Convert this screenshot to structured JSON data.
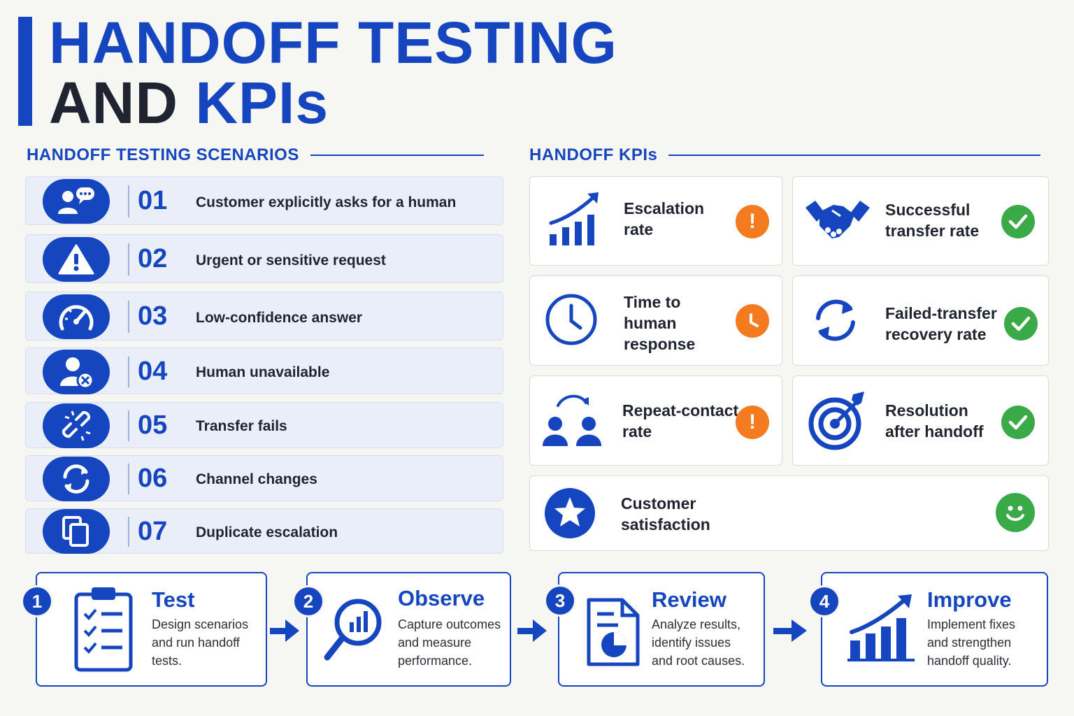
{
  "title": {
    "line1": "HANDOFF TESTING",
    "line2a": "AND ",
    "line2b": "KPIs"
  },
  "colors": {
    "accent": "#1546c0",
    "warning": "#f47b20",
    "success": "#3aaa48"
  },
  "scenarios": {
    "heading": "HANDOFF TESTING SCENARIOS",
    "items": [
      {
        "num": "01",
        "text": "Customer explicitly asks for a human",
        "icon": "chat-person-icon"
      },
      {
        "num": "02",
        "text": "Urgent or sensitive request",
        "icon": "warning-icon"
      },
      {
        "num": "03",
        "text": "Low-confidence answer",
        "icon": "gauge-icon"
      },
      {
        "num": "04",
        "text": "Human unavailable",
        "icon": "person-unavailable-icon"
      },
      {
        "num": "05",
        "text": "Transfer fails",
        "icon": "broken-link-icon"
      },
      {
        "num": "06",
        "text": "Channel changes",
        "icon": "refresh-icon"
      },
      {
        "num": "07",
        "text": "Duplicate escalation",
        "icon": "duplicate-icon"
      }
    ]
  },
  "kpis": {
    "heading": "HANDOFF KPIs",
    "items": [
      {
        "lines": [
          "Escalation",
          "rate"
        ],
        "icon": "growth-chart-icon",
        "status": "alert"
      },
      {
        "lines": [
          "Successful",
          "transfer rate"
        ],
        "icon": "handshake-icon",
        "status": "check"
      },
      {
        "lines": [
          "Time to",
          "human",
          "response"
        ],
        "icon": "clock-icon",
        "status": "clock"
      },
      {
        "lines": [
          "Failed-transfer",
          "recovery rate"
        ],
        "icon": "refresh-icon",
        "status": "check"
      },
      {
        "lines": [
          "Repeat-contact",
          "rate"
        ],
        "icon": "repeat-people-icon",
        "status": "alert"
      },
      {
        "lines": [
          "Resolution",
          "after handoff"
        ],
        "icon": "target-icon",
        "status": "check"
      },
      {
        "lines": [
          "Customer",
          "satisfaction"
        ],
        "icon": "star-icon",
        "status": "smile"
      }
    ]
  },
  "steps": [
    {
      "num": "1",
      "title": "Test",
      "desc": [
        "Design scenarios",
        "and run handoff",
        "tests."
      ],
      "icon": "clipboard-icon"
    },
    {
      "num": "2",
      "title": "Observe",
      "desc": [
        "Capture outcomes",
        "and measure",
        "performance."
      ],
      "icon": "magnifier-chart-icon"
    },
    {
      "num": "3",
      "title": "Review",
      "desc": [
        "Analyze results,",
        "identify issues",
        "and root causes."
      ],
      "icon": "report-icon"
    },
    {
      "num": "4",
      "title": "Improve",
      "desc": [
        "Implement fixes",
        "and strengthen",
        "handoff quality."
      ],
      "icon": "growth-chart-icon"
    }
  ]
}
